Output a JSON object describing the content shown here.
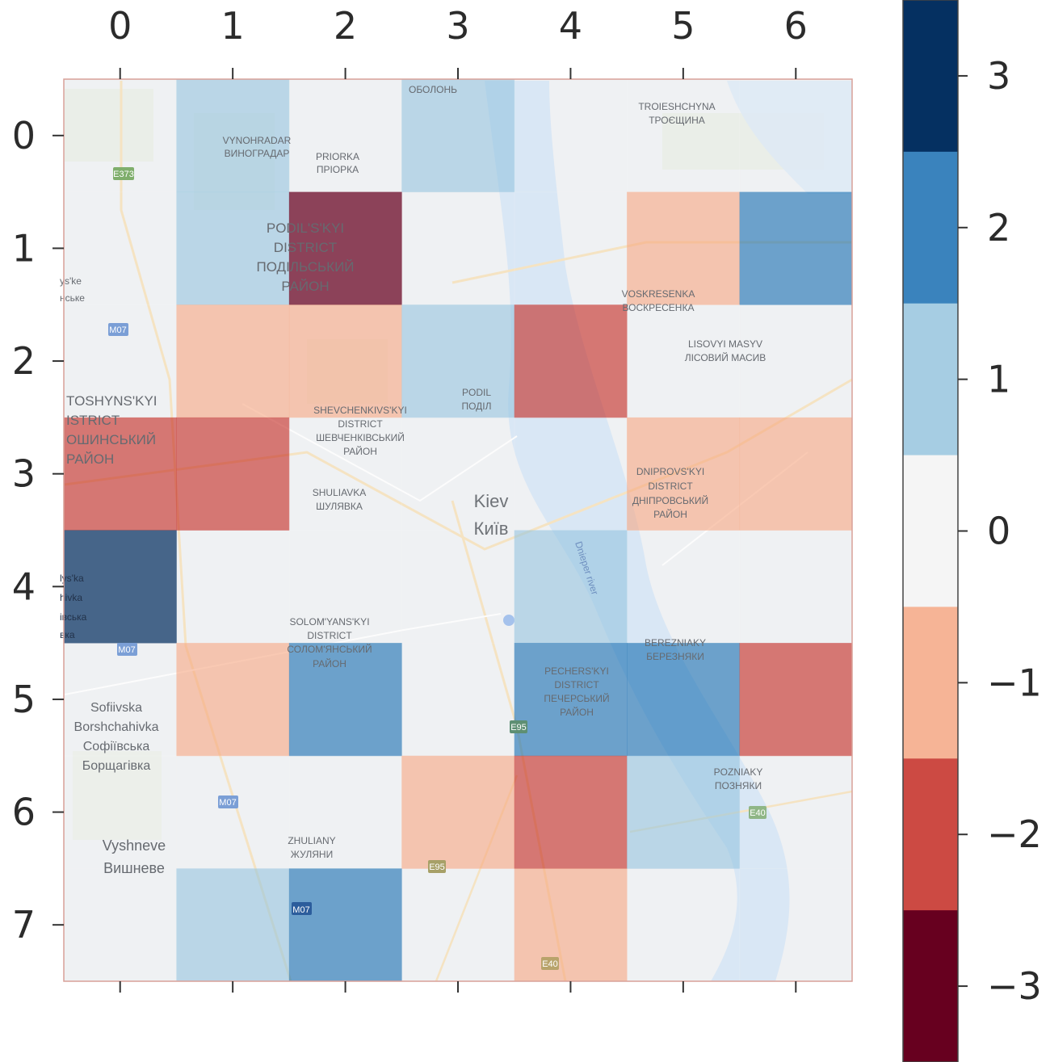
{
  "chart_data": {
    "type": "heatmap",
    "title": "",
    "xlabel": "",
    "ylabel": "",
    "x_tick_labels": [
      "0",
      "1",
      "2",
      "3",
      "4",
      "5",
      "6"
    ],
    "y_tick_labels": [
      "0",
      "1",
      "2",
      "3",
      "4",
      "5",
      "6",
      "7"
    ],
    "values": [
      [
        0,
        1,
        0,
        1,
        0,
        0,
        0
      ],
      [
        0,
        1,
        -3,
        0,
        0,
        -1,
        2
      ],
      [
        0,
        -1,
        -1,
        1,
        -2,
        0,
        0
      ],
      [
        -2,
        -2,
        0,
        0,
        0,
        -1,
        -1
      ],
      [
        3,
        0,
        0,
        0,
        1,
        0,
        0
      ],
      [
        0,
        -1,
        2,
        0,
        2,
        2,
        -2
      ],
      [
        0,
        0,
        0,
        -1,
        -2,
        1,
        0
      ],
      [
        0,
        1,
        2,
        0,
        -1,
        0,
        0
      ]
    ],
    "colorbar": {
      "range": [
        -3.5,
        3.5
      ],
      "tick_labels": [
        "3",
        "2",
        "1",
        "0",
        "−1",
        "−2",
        "−3"
      ],
      "tick_values": [
        3,
        2,
        1,
        0,
        -1,
        -2,
        -3
      ],
      "bins": [
        {
          "value": 3,
          "color": "#053061"
        },
        {
          "value": 2,
          "color": "#3a83bd"
        },
        {
          "value": 1,
          "color": "#a6cde3"
        },
        {
          "value": 0,
          "color": "#f5f5f5"
        },
        {
          "value": -1,
          "color": "#f6b496"
        },
        {
          "value": -2,
          "color": "#cc4a43"
        },
        {
          "value": -3,
          "color": "#67001f"
        }
      ]
    },
    "background_map_labels": [
      "VYNOHRADAR",
      "ВИНОГРАДАР",
      "PRIORKA",
      "ПРІОРКА",
      "ОБОЛОНЬ",
      "TROIESHCHYNA",
      "ТРОЄЩИНА",
      "PODIL'S'KYI",
      "DISTRICT",
      "ПОДІЛЬСЬКИЙ",
      "РАЙОН",
      "VOSKRESENKA",
      "ВОСКРЕСЕНКА",
      "LISOVYI MASYV",
      "ЛІСОВИЙ МАСИВ",
      "PODIL",
      "ПОДІЛ",
      "SHEVCHENKIVS'KYI",
      "DISTRICT",
      "ШЕВЧЕНКІВСЬКИЙ",
      "РАЙОН",
      "TOSHYNS'KYI",
      "ISTRICT",
      "ОШИНСЬКИЙ",
      "РАЙОН",
      "SHULIAVKA",
      "ШУЛЯВКА",
      "Kiev",
      "Київ",
      "DNIPROVS'KYI",
      "DISTRICT",
      "ДНІПРОВСЬКИЙ",
      "РАЙОН",
      "Dnieper river",
      "SOLOM'YANS'KYI",
      "DISTRICT",
      "СОЛОМ'ЯНСЬКИЙ",
      "РАЙОН",
      "BEREZNIAKY",
      "БЕРЕЗНЯКИ",
      "PECHERS'KYI",
      "DISTRICT",
      "ПЕЧЕРСЬКИЙ",
      "РАЙОН",
      "Sofiivska",
      "Borshchahivka",
      "Софіївська",
      "Борщагівка",
      "POZNIAKY",
      "ПОЗНЯКИ",
      "Vyshneve",
      "Вишневе",
      "ZHULIANY",
      "ЖУЛЯНИ",
      "ys'ke",
      "нське",
      "lys'ka",
      "hivka",
      "івська",
      "вка",
      "E373",
      "M07",
      "M07",
      "M07",
      "M07",
      "E95",
      "E95",
      "E40",
      "E40"
    ]
  }
}
